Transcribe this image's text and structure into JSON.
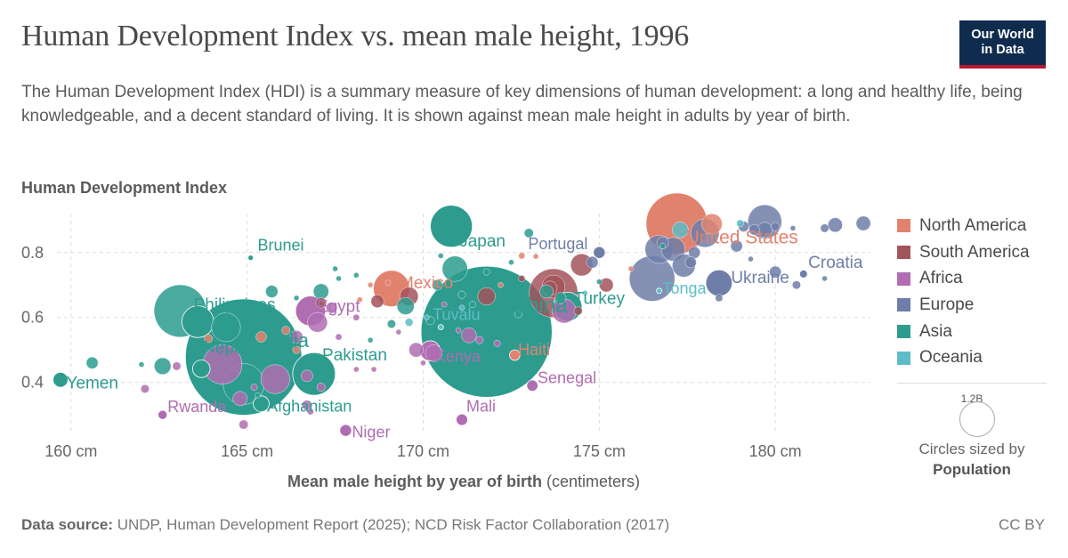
{
  "header": {
    "title": "Human Development Index vs. mean male height, 1996",
    "subtitle": "The Human Development Index (HDI) is a summary measure of key dimensions of human development: a long and healthy life, being knowledgeable, and a decent standard of living. It is shown against mean male height in adults by year of birth.",
    "logo_line1": "Our World",
    "logo_line2": "in Data"
  },
  "colors": {
    "North America": "#e1826f",
    "South America": "#a2545b",
    "Africa": "#b06db1",
    "Europe": "#6e7ea8",
    "Asia": "#2d9c8f",
    "Oceania": "#5dbcc8"
  },
  "legend": {
    "items": [
      "North America",
      "South America",
      "Africa",
      "Europe",
      "Asia",
      "Oceania"
    ],
    "size_value": "1.2B",
    "size_caption_line1": "Circles sized by",
    "size_caption_line2": "Population"
  },
  "footer": {
    "source_label": "Data source:",
    "source_text": " UNDP, Human Development Report (2025); NCD Risk Factor Collaboration (2017)",
    "license": "CC BY"
  },
  "chart_data": {
    "type": "scatter",
    "title": "Human Development Index vs. mean male height, 1996",
    "ylabel": "Human Development Index",
    "xlabel": "Mean male height by year of birth",
    "xlabel_unit": "(centimeters)",
    "xlim": [
      159.6,
      182.7
    ],
    "ylim": [
      0.24,
      0.92
    ],
    "xticks": [
      160,
      165,
      170,
      175,
      180
    ],
    "xtick_labels": [
      "160 cm",
      "165 cm",
      "170 cm",
      "175 cm",
      "180 cm"
    ],
    "yticks": [
      0.4,
      0.6,
      0.8
    ],
    "ytick_labels": [
      "0.4",
      "0.6",
      "0.8"
    ],
    "grid": true,
    "legend_position": "right",
    "labeled_points": [
      {
        "name": "United States",
        "x": 177.2,
        "y": 0.889,
        "region": "North America",
        "pop": 270
      },
      {
        "name": "Japan",
        "x": 170.8,
        "y": 0.881,
        "region": "Asia",
        "pop": 126
      },
      {
        "name": "Brunei",
        "x": 165.1,
        "y": 0.784,
        "region": "Asia",
        "pop": 0.3
      },
      {
        "name": "Portugal",
        "x": 175.0,
        "y": 0.8,
        "region": "Europe",
        "pop": 10
      },
      {
        "name": "Mexico",
        "x": 169.1,
        "y": 0.689,
        "region": "North America",
        "pop": 95
      },
      {
        "name": "Ukraine",
        "x": 178.4,
        "y": 0.706,
        "region": "Europe",
        "pop": 50
      },
      {
        "name": "Croatia",
        "x": 180.8,
        "y": 0.734,
        "region": "Europe",
        "pop": 4.5
      },
      {
        "name": "Tonga",
        "x": 176.7,
        "y": 0.682,
        "region": "Oceania",
        "pop": 0.1
      },
      {
        "name": "Philippines",
        "x": 163.6,
        "y": 0.587,
        "region": "Asia",
        "pop": 72
      },
      {
        "name": "Egypt",
        "x": 166.8,
        "y": 0.62,
        "region": "Africa",
        "pop": 64
      },
      {
        "name": "China",
        "x": 171.8,
        "y": 0.556,
        "region": "Asia",
        "pop": 1230
      },
      {
        "name": "Turkey",
        "x": 174.1,
        "y": 0.633,
        "region": "Asia",
        "pop": 60
      },
      {
        "name": "Tuvalu",
        "x": 170.5,
        "y": 0.57,
        "region": "Oceania",
        "pop": 0.01
      },
      {
        "name": "India",
        "x": 164.9,
        "y": 0.478,
        "region": "Asia",
        "pop": 970
      },
      {
        "name": "Haiti",
        "x": 172.6,
        "y": 0.484,
        "region": "North America",
        "pop": 7.8
      },
      {
        "name": "Kenya",
        "x": 170.2,
        "y": 0.497,
        "region": "Africa",
        "pop": 29
      },
      {
        "name": "Nepal",
        "x": 163.7,
        "y": 0.442,
        "region": "Asia",
        "pop": 22
      },
      {
        "name": "Pakistan",
        "x": 166.9,
        "y": 0.426,
        "region": "Asia",
        "pop": 130
      },
      {
        "name": "Yemen",
        "x": 159.7,
        "y": 0.408,
        "region": "Asia",
        "pop": 16
      },
      {
        "name": "Senegal",
        "x": 173.1,
        "y": 0.39,
        "region": "Africa",
        "pop": 9
      },
      {
        "name": "Afghanistan",
        "x": 165.4,
        "y": 0.334,
        "region": "Asia",
        "pop": 18
      },
      {
        "name": "Rwanda",
        "x": 162.6,
        "y": 0.3,
        "region": "Africa",
        "pop": 6
      },
      {
        "name": "Mali",
        "x": 171.1,
        "y": 0.285,
        "region": "Africa",
        "pop": 9.5
      },
      {
        "name": "Niger",
        "x": 167.8,
        "y": 0.252,
        "region": "Africa",
        "pop": 10
      }
    ],
    "points": [
      {
        "x": 178.2,
        "y": 0.888,
        "region": "North America",
        "pop": 30
      },
      {
        "x": 175.9,
        "y": 0.75,
        "region": "North America",
        "pop": 0.3
      },
      {
        "x": 172.8,
        "y": 0.79,
        "region": "North America",
        "pop": 3
      },
      {
        "x": 168.5,
        "y": 0.7,
        "region": "North America",
        "pop": 0.4
      },
      {
        "x": 168.2,
        "y": 0.655,
        "region": "North America",
        "pop": 2
      },
      {
        "x": 172.2,
        "y": 0.7,
        "region": "North America",
        "pop": 2
      },
      {
        "x": 166.1,
        "y": 0.56,
        "region": "North America",
        "pop": 5
      },
      {
        "x": 165.4,
        "y": 0.54,
        "region": "North America",
        "pop": 8
      },
      {
        "x": 163.9,
        "y": 0.535,
        "region": "North America",
        "pop": 5
      },
      {
        "x": 166.4,
        "y": 0.5,
        "region": "North America",
        "pop": 4
      },
      {
        "x": 169.0,
        "y": 0.707,
        "region": "North America",
        "pop": 0.3
      },
      {
        "x": 173.2,
        "y": 0.788,
        "region": "North America",
        "pop": 1
      },
      {
        "x": 173.7,
        "y": 0.675,
        "region": "South America",
        "pop": 170
      },
      {
        "x": 174.5,
        "y": 0.762,
        "region": "South America",
        "pop": 35
      },
      {
        "x": 173.6,
        "y": 0.69,
        "region": "South America",
        "pop": 15
      },
      {
        "x": 173.7,
        "y": 0.695,
        "region": "South America",
        "pop": 38
      },
      {
        "x": 169.6,
        "y": 0.665,
        "region": "South America",
        "pop": 24
      },
      {
        "x": 167.1,
        "y": 0.645,
        "region": "South America",
        "pop": 8
      },
      {
        "x": 168.7,
        "y": 0.65,
        "region": "South America",
        "pop": 12
      },
      {
        "x": 171.8,
        "y": 0.665,
        "region": "South America",
        "pop": 22
      },
      {
        "x": 172.8,
        "y": 0.72,
        "region": "South America",
        "pop": 3
      },
      {
        "x": 174.4,
        "y": 0.62,
        "region": "South America",
        "pop": 5
      },
      {
        "x": 175.2,
        "y": 0.7,
        "region": "South America",
        "pop": 14
      },
      {
        "x": 165.8,
        "y": 0.41,
        "region": "Africa",
        "pop": 60
      },
      {
        "x": 164.3,
        "y": 0.455,
        "region": "Africa",
        "pop": 110
      },
      {
        "x": 162.1,
        "y": 0.38,
        "region": "Africa",
        "pop": 5
      },
      {
        "x": 163.0,
        "y": 0.45,
        "region": "Africa",
        "pop": 5
      },
      {
        "x": 165.2,
        "y": 0.385,
        "region": "Africa",
        "pop": 3
      },
      {
        "x": 164.9,
        "y": 0.27,
        "region": "Africa",
        "pop": 6
      },
      {
        "x": 166.7,
        "y": 0.42,
        "region": "Africa",
        "pop": 10
      },
      {
        "x": 166.7,
        "y": 0.33,
        "region": "Africa",
        "pop": 7
      },
      {
        "x": 166.8,
        "y": 0.31,
        "region": "Africa",
        "pop": 3
      },
      {
        "x": 167.1,
        "y": 0.385,
        "region": "Africa",
        "pop": 5
      },
      {
        "x": 168.1,
        "y": 0.44,
        "region": "Africa",
        "pop": 1
      },
      {
        "x": 168.6,
        "y": 0.44,
        "region": "Africa",
        "pop": 2
      },
      {
        "x": 167.0,
        "y": 0.585,
        "region": "Africa",
        "pop": 28
      },
      {
        "x": 167.4,
        "y": 0.63,
        "region": "Africa",
        "pop": 9
      },
      {
        "x": 169.8,
        "y": 0.5,
        "region": "Africa",
        "pop": 15
      },
      {
        "x": 170.3,
        "y": 0.49,
        "region": "Africa",
        "pop": 20
      },
      {
        "x": 170.6,
        "y": 0.64,
        "region": "Africa",
        "pop": 1.3
      },
      {
        "x": 171.0,
        "y": 0.56,
        "region": "Africa",
        "pop": 1.5
      },
      {
        "x": 171.6,
        "y": 0.53,
        "region": "Africa",
        "pop": 4
      },
      {
        "x": 172.1,
        "y": 0.52,
        "region": "Africa",
        "pop": 3
      },
      {
        "x": 174.0,
        "y": 0.62,
        "region": "Africa",
        "pop": 42
      },
      {
        "x": 164.8,
        "y": 0.35,
        "region": "Africa",
        "pop": 15
      },
      {
        "x": 168.1,
        "y": 0.6,
        "region": "Africa",
        "pop": 3
      },
      {
        "x": 169.3,
        "y": 0.555,
        "region": "Africa",
        "pop": 2
      },
      {
        "x": 171.3,
        "y": 0.545,
        "region": "Africa",
        "pop": 16
      },
      {
        "x": 170.0,
        "y": 0.46,
        "region": "Africa",
        "pop": 2
      },
      {
        "x": 166.4,
        "y": 0.54,
        "region": "Africa",
        "pop": 12
      },
      {
        "x": 167.6,
        "y": 0.54,
        "region": "Africa",
        "pop": 3
      },
      {
        "x": 176.5,
        "y": 0.72,
        "region": "Europe",
        "pop": 148
      },
      {
        "x": 176.7,
        "y": 0.81,
        "region": "Europe",
        "pop": 57
      },
      {
        "x": 177.1,
        "y": 0.81,
        "region": "Europe",
        "pop": 40
      },
      {
        "x": 177.4,
        "y": 0.76,
        "region": "Europe",
        "pop": 38
      },
      {
        "x": 177.7,
        "y": 0.8,
        "region": "Europe",
        "pop": 10
      },
      {
        "x": 178.0,
        "y": 0.86,
        "region": "Europe",
        "pop": 58
      },
      {
        "x": 178.9,
        "y": 0.82,
        "region": "Europe",
        "pop": 10
      },
      {
        "x": 179.1,
        "y": 0.88,
        "region": "Europe",
        "pop": 8
      },
      {
        "x": 179.4,
        "y": 0.87,
        "region": "Europe",
        "pop": 8
      },
      {
        "x": 179.7,
        "y": 0.895,
        "region": "Europe",
        "pop": 82
      },
      {
        "x": 180.0,
        "y": 0.88,
        "region": "Europe",
        "pop": 5
      },
      {
        "x": 180.5,
        "y": 0.875,
        "region": "Europe",
        "pop": 0.3
      },
      {
        "x": 181.4,
        "y": 0.875,
        "region": "Europe",
        "pop": 5
      },
      {
        "x": 181.7,
        "y": 0.885,
        "region": "Europe",
        "pop": 15
      },
      {
        "x": 182.5,
        "y": 0.89,
        "region": "Europe",
        "pop": 15
      },
      {
        "x": 180.6,
        "y": 0.7,
        "region": "Europe",
        "pop": 5
      },
      {
        "x": 180.0,
        "y": 0.74,
        "region": "Europe",
        "pop": 10
      },
      {
        "x": 181.4,
        "y": 0.72,
        "region": "Europe",
        "pop": 2
      },
      {
        "x": 178.4,
        "y": 0.66,
        "region": "Europe",
        "pop": 4
      },
      {
        "x": 179.3,
        "y": 0.78,
        "region": "Europe",
        "pop": 2
      },
      {
        "x": 176.8,
        "y": 0.83,
        "region": "Europe",
        "pop": 10
      },
      {
        "x": 177.6,
        "y": 0.77,
        "region": "Europe",
        "pop": 9
      },
      {
        "x": 174.8,
        "y": 0.77,
        "region": "Europe",
        "pop": 10
      },
      {
        "x": 179.7,
        "y": 0.87,
        "region": "Europe",
        "pop": 16
      },
      {
        "x": 170.9,
        "y": 0.75,
        "region": "Asia",
        "pop": 46
      },
      {
        "x": 170.5,
        "y": 0.79,
        "region": "Asia",
        "pop": 0.5
      },
      {
        "x": 171.8,
        "y": 0.74,
        "region": "Asia",
        "pop": 3
      },
      {
        "x": 172.5,
        "y": 0.77,
        "region": "Asia",
        "pop": 0.6
      },
      {
        "x": 173.5,
        "y": 0.68,
        "region": "Asia",
        "pop": 13
      },
      {
        "x": 173.0,
        "y": 0.86,
        "region": "Asia",
        "pop": 6
      },
      {
        "x": 175.0,
        "y": 0.71,
        "region": "Asia",
        "pop": 2
      },
      {
        "x": 176.8,
        "y": 0.82,
        "region": "Asia",
        "pop": 0.3
      },
      {
        "x": 169.5,
        "y": 0.635,
        "region": "Asia",
        "pop": 21
      },
      {
        "x": 169.1,
        "y": 0.58,
        "region": "Asia",
        "pop": 5
      },
      {
        "x": 170.2,
        "y": 0.59,
        "region": "Asia",
        "pop": 5
      },
      {
        "x": 171.4,
        "y": 0.64,
        "region": "Asia",
        "pop": 3
      },
      {
        "x": 171.1,
        "y": 0.67,
        "region": "Asia",
        "pop": 4
      },
      {
        "x": 167.5,
        "y": 0.75,
        "region": "Asia",
        "pop": 2
      },
      {
        "x": 168.1,
        "y": 0.73,
        "region": "Asia",
        "pop": 0.5
      },
      {
        "x": 167.6,
        "y": 0.72,
        "region": "Asia",
        "pop": 0.6
      },
      {
        "x": 167.1,
        "y": 0.68,
        "region": "Asia",
        "pop": 17
      },
      {
        "x": 166.4,
        "y": 0.66,
        "region": "Asia",
        "pop": 2
      },
      {
        "x": 164.4,
        "y": 0.57,
        "region": "Asia",
        "pop": 60
      },
      {
        "x": 163.1,
        "y": 0.62,
        "region": "Asia",
        "pop": 196
      },
      {
        "x": 164.9,
        "y": 0.395,
        "region": "Asia",
        "pop": 120
      },
      {
        "x": 162.6,
        "y": 0.45,
        "region": "Asia",
        "pop": 20
      },
      {
        "x": 162.0,
        "y": 0.455,
        "region": "Asia",
        "pop": 0.6
      },
      {
        "x": 160.6,
        "y": 0.46,
        "region": "Asia",
        "pop": 10
      },
      {
        "x": 165.3,
        "y": 0.36,
        "region": "Asia",
        "pop": 1
      },
      {
        "x": 165.7,
        "y": 0.68,
        "region": "Asia",
        "pop": 11
      },
      {
        "x": 168.5,
        "y": 0.53,
        "region": "Asia",
        "pop": 2
      },
      {
        "x": 170.4,
        "y": 0.7,
        "region": "Asia",
        "pop": 8
      },
      {
        "x": 173.9,
        "y": 0.66,
        "region": "Asia",
        "pop": 9
      },
      {
        "x": 172.7,
        "y": 0.61,
        "region": "Asia",
        "pop": 4
      },
      {
        "x": 170.1,
        "y": 0.6,
        "region": "Oceania",
        "pop": 0.2
      },
      {
        "x": 171.1,
        "y": 0.63,
        "region": "Oceania",
        "pop": 0.8
      },
      {
        "x": 177.3,
        "y": 0.87,
        "region": "Oceania",
        "pop": 18
      },
      {
        "x": 179.0,
        "y": 0.89,
        "region": "Oceania",
        "pop": 3.7
      },
      {
        "x": 169.6,
        "y": 0.585,
        "region": "Oceania",
        "pop": 4.5
      },
      {
        "x": 174.6,
        "y": 0.675,
        "region": "Oceania",
        "pop": 0.2
      }
    ]
  }
}
